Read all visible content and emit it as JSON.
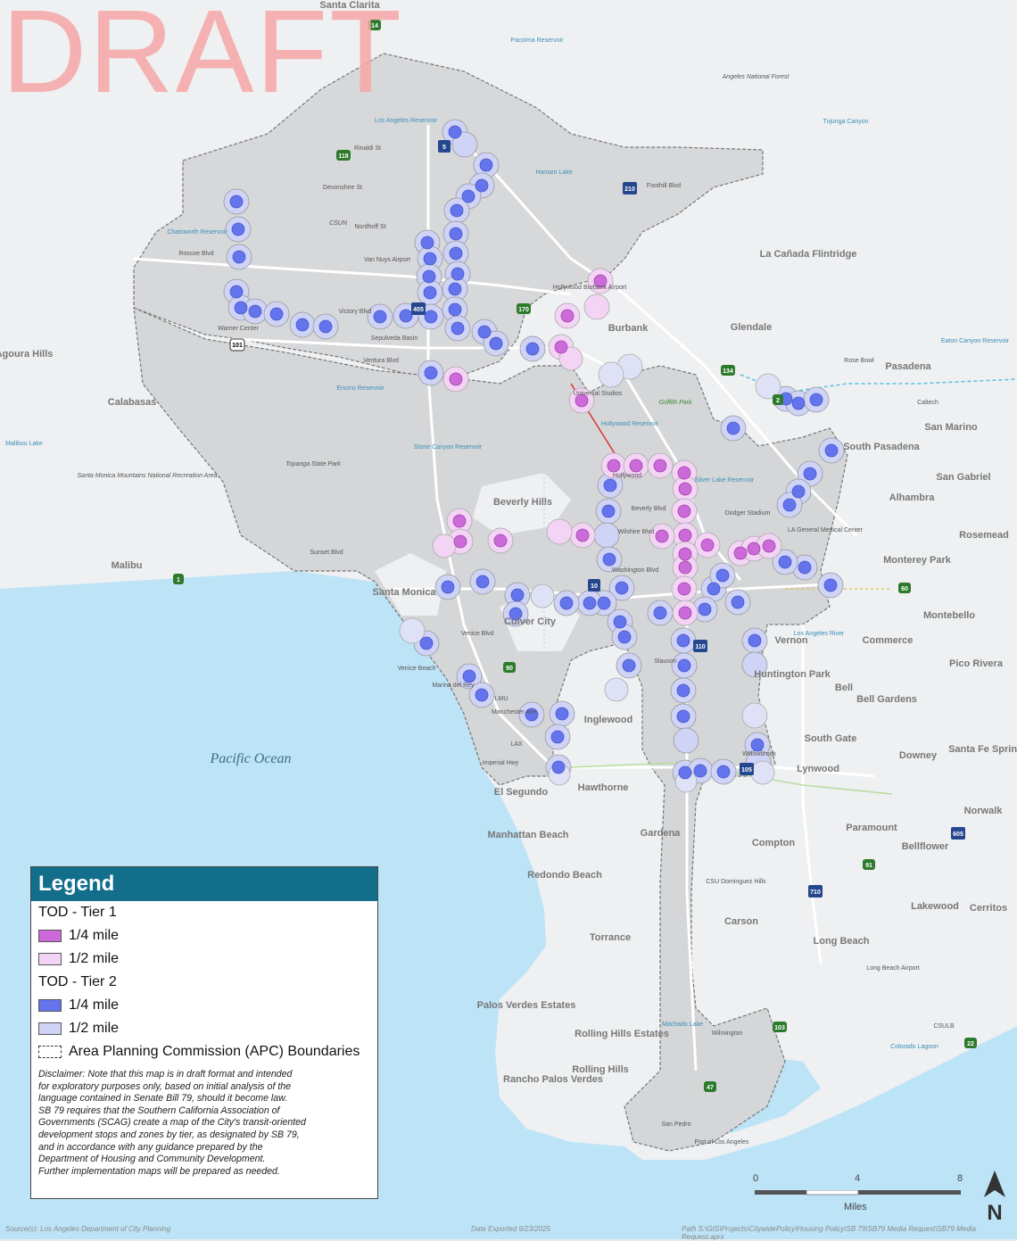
{
  "watermark": "DRAFT",
  "legend": {
    "title": "Legend",
    "tier1_header": "TOD - Tier 1",
    "tier1_quarter": "1/4 mile",
    "tier1_half": "1/2 mile",
    "tier2_header": "TOD - Tier 2",
    "tier2_quarter": "1/4 mile",
    "tier2_half": "1/2 mile",
    "apc": "Area Planning Commission (APC) Boundaries",
    "disclaimer": [
      "Disclaimer: Note that this map is in draft format and intended",
      "for exploratory purposes only, based on initial analysis of the",
      "language contained in Senate Bill 79, should it become law.",
      "SB 79 requires that the Southern California Association of",
      "Governments (SCAG) create a map of the City's transit-oriented",
      "development stops and zones by tier, as designated by SB 79,",
      "and in accordance with any guidance prepared by the",
      "Department of Housing and Community Development.",
      "Further implementation maps will be prepared as needed."
    ],
    "colors": {
      "tier1_quarter": "#cc6ad9",
      "tier1_half": "#f3d4f5",
      "tier2_quarter": "#6474ec",
      "tier2_half": "#cfd3f5"
    }
  },
  "scale": {
    "ticks": [
      "0",
      "4",
      "8"
    ],
    "unit": "Miles"
  },
  "north": "N",
  "footer": {
    "source": "Source(s): Los Angeles Department of City Planning",
    "date": "Date Exported 9/23/2025",
    "path": "Path S:\\GIS\\Projects\\CitywidePolicy\\Housing Policy\\SB 79\\SB79 Media Request\\SB79 Media Request.aprx"
  },
  "ocean_label": "Pacific Ocean",
  "places": {
    "santa_clarita": "Santa Clarita",
    "agoura_hills": "Agoura Hills",
    "calabasas": "Calabasas",
    "malibu": "Malibu",
    "burbank": "Burbank",
    "glendale": "Glendale",
    "la_canada": "La Cañada Flintridge",
    "pasadena": "Pasadena",
    "south_pasadena": "South Pasadena",
    "san_marino": "San Marino",
    "san_gabriel": "San Gabriel",
    "alhambra": "Alhambra",
    "rosemead": "Rosemead",
    "monterey_park": "Monterey Park",
    "montebello": "Montebello",
    "commerce": "Commerce",
    "pico_rivera": "Pico Rivera",
    "beverly_hills": "Beverly Hills",
    "santa_monica": "Santa Monica",
    "culver_city": "Culver City",
    "vernon": "Vernon",
    "huntington_park": "Huntington Park",
    "bell": "Bell",
    "bell_gardens": "Bell Gardens",
    "south_gate": "South Gate",
    "downey": "Downey",
    "santa_fe_springs": "Santa Fe Springs",
    "lynwood": "Lynwood",
    "inglewood": "Inglewood",
    "hawthorne": "Hawthorne",
    "el_segundo": "El Segundo",
    "manhattan_beach": "Manhattan Beach",
    "gardena": "Gardena",
    "compton": "Compton",
    "paramount": "Paramount",
    "bellflower": "Bellflower",
    "norwalk": "Norwalk",
    "redondo_beach": "Redondo Beach",
    "torrance": "Torrance",
    "carson": "Carson",
    "lakewood": "Lakewood",
    "cerritos": "Cerritos",
    "long_beach": "Long Beach",
    "palos_verdes_estates": "Palos Verdes Estates",
    "rolling_hills_estates": "Rolling Hills Estates",
    "rolling_hills": "Rolling Hills",
    "rancho_palos_verdes": "Rancho Palos Verdes"
  },
  "small_labels": {
    "pacoima": "Pacoima Reservoir",
    "angeles_nf": "Angeles National Forest",
    "tujunga": "Tujunga Canyon",
    "la_reservoir": "Los Angeles Reservoir",
    "hansen": "Hansen Lake",
    "rinaldi": "Rinaldi St",
    "devonshire": "Devonshire St",
    "nordhoff": "Nordhoff St",
    "csun": "CSUN",
    "roscoe": "Roscoe Blvd",
    "chatsworth": "Chatsworth Reservoir",
    "victory": "Victory Blvd",
    "warner": "Warner Center",
    "ventura": "Ventura Blvd",
    "encino": "Encino Reservoir",
    "sepulveda": "Sepulveda Basin",
    "foothill": "Foothill Blvd",
    "griffith": "Griffith Park",
    "hollywood_res": "Hollywood Reservoir",
    "stone_canyon": "Stone Canyon Reservoir",
    "topanga": "Topanga State Park",
    "smm": "Santa Monica Mountains National Recreation Area",
    "malibu_lake": "Malibou Lake",
    "rose_bowl": "Rose Bowl",
    "caltech": "Caltech",
    "eaton": "Eaton Canyon Reservoir",
    "silverlake": "Silver Lake Reservoir",
    "dodger": "Dodger Stadium",
    "la_general": "LA General Medical Center",
    "beverly_blvd": "Beverly Blvd",
    "wilshire": "Wilshire Blvd",
    "washington": "Washington Blvd",
    "sunset": "Sunset Blvd",
    "venice_blvd": "Venice Blvd",
    "venice_beach": "Venice Beach",
    "marina": "Marina del Rey",
    "lmu": "LMU",
    "lax": "LAX",
    "imperial": "Imperial Hwy",
    "manchester": "Manchester Ave",
    "slauson": "Slauson",
    "la_river": "Los Angeles River",
    "csudh": "CSU Dominguez Hills",
    "lb_airport": "Long Beach Airport",
    "csulb": "CSULB",
    "colorado": "Colorado Lagoon",
    "machado": "Machado Lake",
    "wilmington": "Wilmington",
    "san_pedro": "San Pedro",
    "port": "Port of Los Angeles",
    "burbank_airport": "Hollywood Burbank Airport",
    "van_nuys": "Van Nuys Airport",
    "universal": "Universal Studios",
    "hollywood": "Hollywood",
    "willowbrook": "Willowbrook"
  },
  "highways": [
    "14",
    "5",
    "118",
    "210",
    "170",
    "405",
    "101",
    "134",
    "2",
    "110",
    "10",
    "60",
    "105",
    "90",
    "1",
    "91",
    "605",
    "710",
    "103",
    "47",
    "22"
  ]
}
